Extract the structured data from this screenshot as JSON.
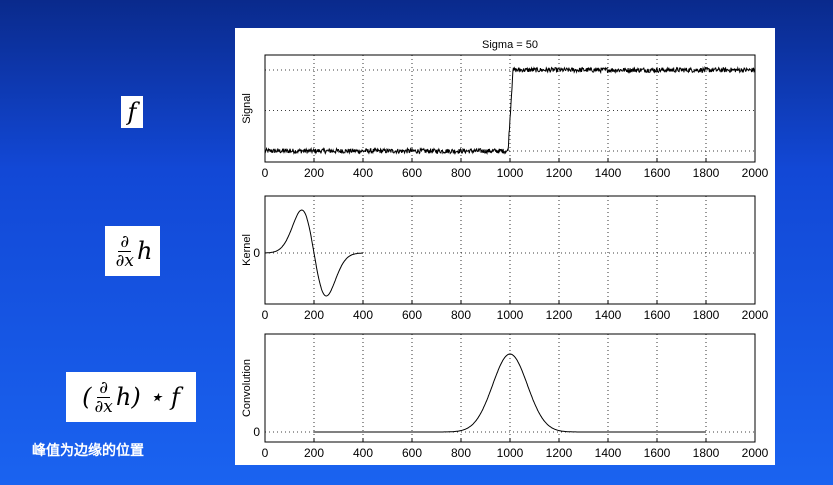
{
  "formulas": {
    "f": "f",
    "dh": {
      "num": "∂",
      "den": "∂x",
      "tail": "h"
    },
    "conv": {
      "open": "(",
      "num": "∂",
      "den": "∂x",
      "tail": "h) ⋆ f"
    }
  },
  "caption": "峰值为边缘的位置",
  "chart_data": [
    {
      "type": "line",
      "title": "Sigma = 50",
      "ylabel": "Signal",
      "xlim": [
        0,
        2000
      ],
      "xticks": [
        "0",
        "200",
        "400",
        "600",
        "800",
        "1000",
        "1200",
        "1400",
        "1600",
        "1800",
        "2000"
      ],
      "grid": true,
      "description_of_series": "noisy step",
      "step": {
        "low": 0,
        "high": 1,
        "x_step": 1000,
        "noise": 0.03
      }
    },
    {
      "type": "line",
      "ylabel": "Kernel",
      "xlim": [
        0,
        2000
      ],
      "yticks": [
        "0"
      ],
      "xticks": [
        "0",
        "200",
        "400",
        "600",
        "800",
        "1000",
        "1200",
        "1400",
        "1600",
        "1800",
        "2000"
      ],
      "grid": true,
      "kernel": {
        "center": 200,
        "sigma": 50,
        "x_min": 0,
        "x_max": 400
      }
    },
    {
      "type": "line",
      "ylabel": "Convolution",
      "xlim": [
        0,
        2000
      ],
      "yticks": [
        "0"
      ],
      "xticks": [
        "0",
        "200",
        "400",
        "600",
        "800",
        "1000",
        "1200",
        "1400",
        "1600",
        "1800",
        "2000"
      ],
      "grid": true,
      "peak": {
        "center": 1000,
        "sigma": 50,
        "x_min": 200,
        "x_max": 1800
      }
    }
  ]
}
